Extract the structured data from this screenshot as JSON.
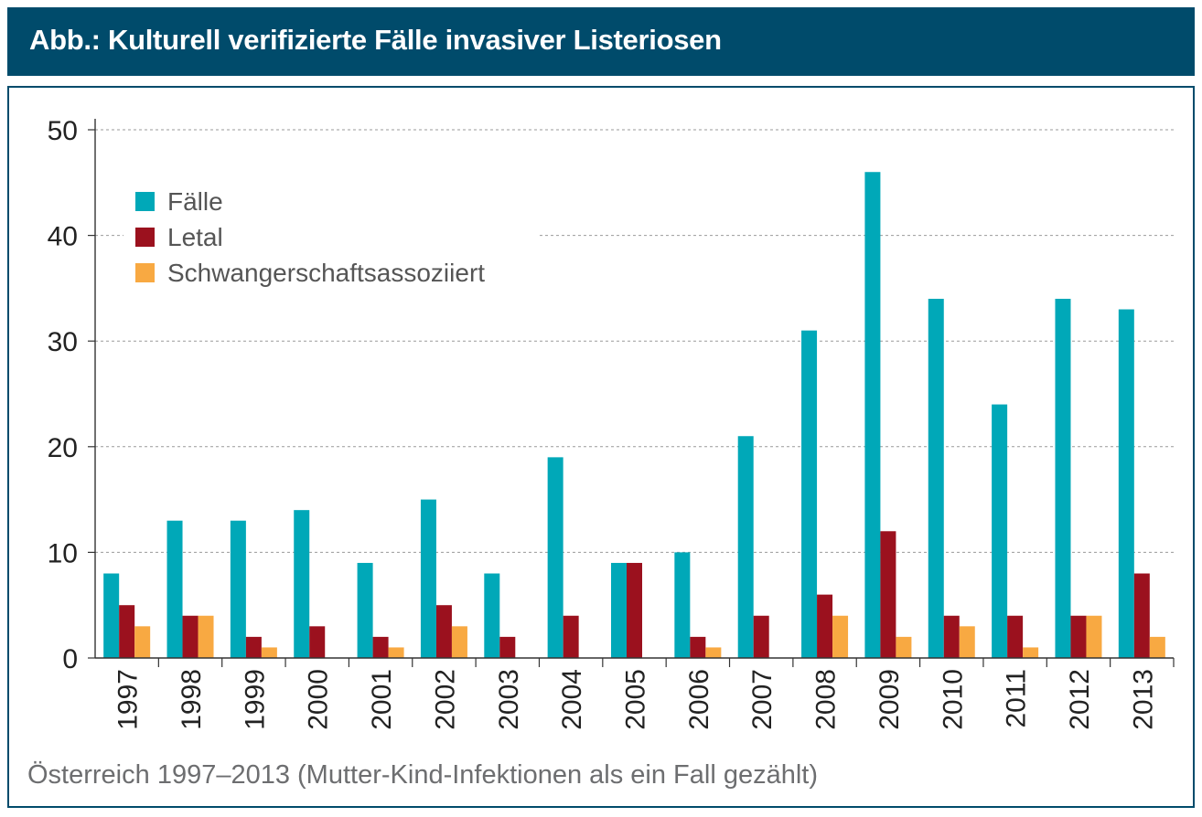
{
  "header": {
    "title": "Abb.: Kulturell verifizierte Fälle invasiver Listeriosen"
  },
  "caption": "Österreich 1997–2013 (Mutter-Kind-Infektionen als ein Fall gezählt)",
  "colors": {
    "header_bg": "#004b6b",
    "faelle": "#00a8b8",
    "letal": "#9b111e",
    "schwanger": "#f8a942"
  },
  "chart_data": {
    "type": "bar",
    "title": "Abb.: Kulturell verifizierte Fälle invasiver Listeriosen",
    "xlabel": "",
    "ylabel": "",
    "ylim": [
      0,
      50
    ],
    "yticks": [
      0,
      10,
      20,
      30,
      40,
      50
    ],
    "grid": true,
    "legend_position": "top-left",
    "categories": [
      "1997",
      "1998",
      "1999",
      "2000",
      "2001",
      "2002",
      "2003",
      "2004",
      "2005",
      "2006",
      "2007",
      "2008",
      "2009",
      "2010",
      "2011",
      "2012",
      "2013"
    ],
    "series": [
      {
        "name": "Fälle",
        "color": "#00a8b8",
        "values": [
          8,
          13,
          13,
          14,
          9,
          15,
          8,
          19,
          9,
          10,
          21,
          31,
          46,
          34,
          24,
          34,
          33
        ]
      },
      {
        "name": "Letal",
        "color": "#9b111e",
        "values": [
          5,
          4,
          2,
          3,
          2,
          5,
          2,
          4,
          9,
          2,
          4,
          6,
          12,
          4,
          4,
          4,
          8
        ]
      },
      {
        "name": "Schwangerschaftsassoziiert",
        "color": "#f8a942",
        "values": [
          3,
          4,
          1,
          0,
          1,
          3,
          0,
          0,
          0,
          1,
          0,
          4,
          2,
          3,
          1,
          4,
          2
        ]
      }
    ]
  }
}
